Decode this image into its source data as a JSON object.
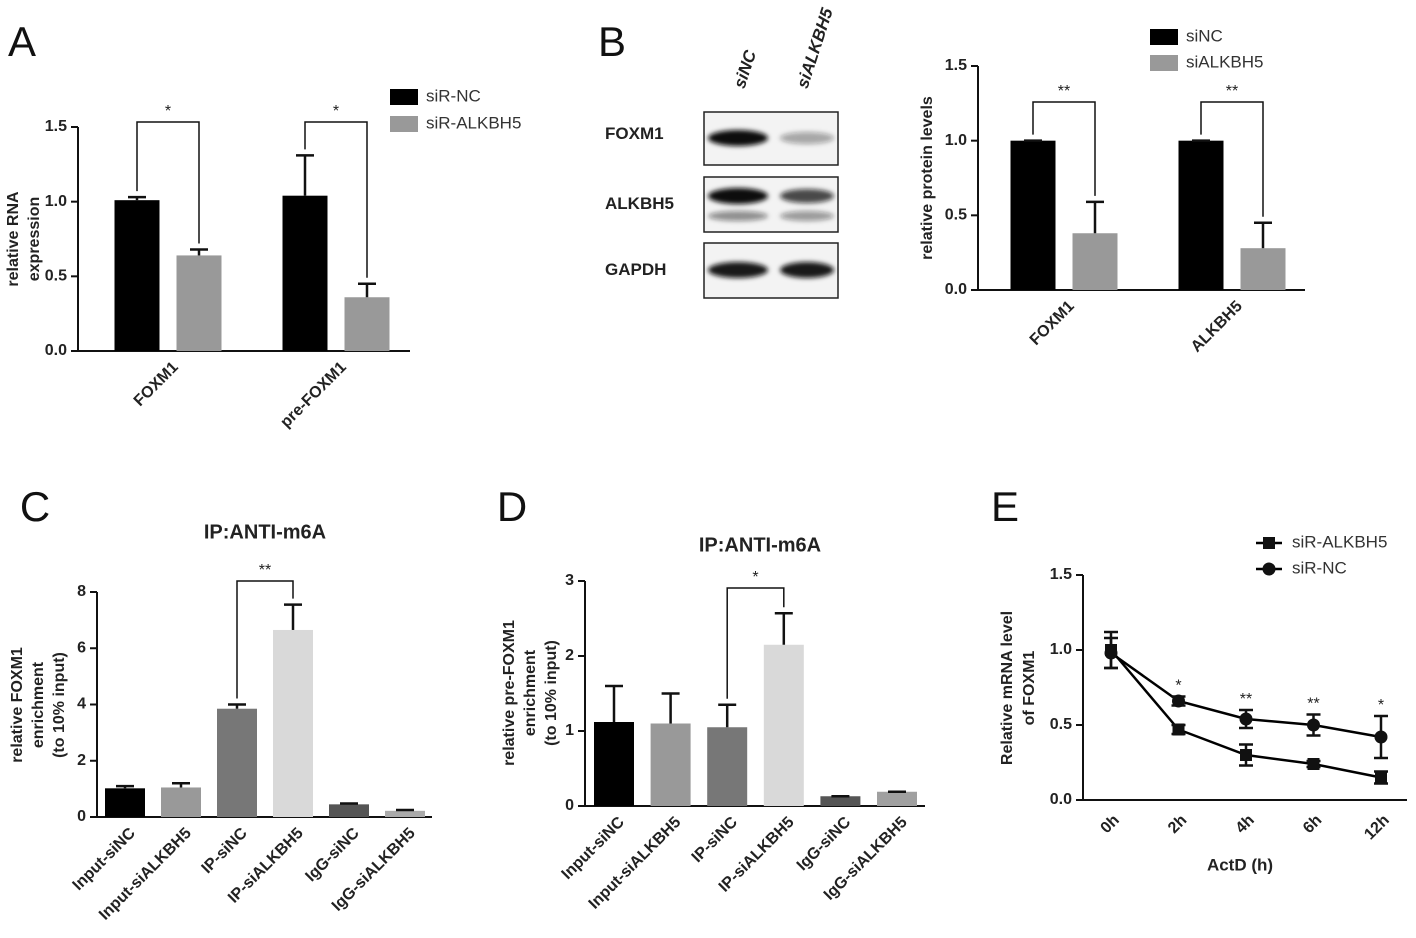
{
  "chart_data": [
    {
      "type": "bar",
      "panel": "A",
      "ylabel": [
        "relative RNA",
        "expression"
      ],
      "categories": [
        "FOXM1",
        "pre-FOXM1"
      ],
      "series": [
        {
          "name": "siR-NC",
          "color": "#000000",
          "values": [
            1.01,
            1.04
          ],
          "errors": [
            0.02,
            0.27
          ]
        },
        {
          "name": "siR-ALKBH5",
          "color": "#999999",
          "values": [
            0.64,
            0.36
          ],
          "errors": [
            0.04,
            0.09
          ]
        }
      ],
      "ylim": [
        0,
        1.5
      ],
      "yticks": [
        {
          "value": 0,
          "label": "0.0"
        },
        {
          "value": 0.5,
          "label": "0.5"
        },
        {
          "value": 1,
          "label": "1.0"
        },
        {
          "value": 1.5,
          "label": "1.5"
        }
      ],
      "brackets": [
        {
          "category": "FOXM1",
          "text": "*"
        },
        {
          "category": "pre-FOXM1",
          "text": "*"
        }
      ]
    },
    {
      "type": "blot",
      "panel": "B",
      "lanes": [
        "siNC",
        "siALKBH5"
      ],
      "proteins": [
        "FOXM1",
        "ALKBH5",
        "GAPDH"
      ]
    },
    {
      "type": "bar",
      "ylabel": [
        "relative  protein levels"
      ],
      "categories": [
        "FOXM1",
        "ALKBH5"
      ],
      "series": [
        {
          "name": "siNC",
          "color": "#000000",
          "values": [
            1.0,
            1.0
          ],
          "errors": [
            0,
            0
          ]
        },
        {
          "name": "siALKBH5",
          "color": "#999999",
          "values": [
            0.38,
            0.28
          ],
          "errors": [
            0.21,
            0.17
          ]
        }
      ],
      "ylim": [
        0,
        1.5
      ],
      "yticks": [
        {
          "value": 0,
          "label": "0.0"
        },
        {
          "value": 0.5,
          "label": "0.5"
        },
        {
          "value": 1,
          "label": "1.0"
        },
        {
          "value": 1.5,
          "label": "1.5"
        }
      ],
      "brackets": [
        {
          "category": "FOXM1",
          "text": "**"
        },
        {
          "category": "ALKBH5",
          "text": "**"
        }
      ]
    },
    {
      "type": "bar",
      "panel": "C",
      "title": "IP:ANTI-m6A",
      "ylabel": [
        "relative FOXM1",
        "enrichment",
        "(to 10% input)"
      ],
      "categories": [
        "Input-siNC",
        "Input-siALKBH5",
        "IP-siNC",
        "IP-siALKBH5",
        "IgG-siNC",
        "IgG-siALKBH5"
      ],
      "values": [
        1.02,
        1.05,
        3.85,
        6.65,
        0.45,
        0.22
      ],
      "errors": [
        0.08,
        0.15,
        0.15,
        0.9,
        0.03,
        0.03
      ],
      "colors": [
        "#000000",
        "#999999",
        "#777777",
        "#d9d9d9",
        "#555555",
        "#aaaaaa"
      ],
      "ylim": [
        0,
        8
      ],
      "yticks": [
        0,
        2,
        4,
        6,
        8
      ],
      "brackets": [
        {
          "from": "IP-siNC",
          "to": "IP-siALKBH5",
          "text": "**"
        }
      ]
    },
    {
      "type": "bar",
      "panel": "D",
      "title": "IP:ANTI-m6A",
      "ylabel": [
        "relative pre-FOXM1",
        "enrichment",
        "(to 10% input)"
      ],
      "categories": [
        "Input-siNC",
        "Input-siALKBH5",
        "IP-siNC",
        "IP-siALKBH5",
        "IgG-siNC",
        "IgG-siALKBH5"
      ],
      "values": [
        1.12,
        1.1,
        1.05,
        2.15,
        0.13,
        0.19
      ],
      "errors": [
        0.48,
        0.4,
        0.3,
        0.42,
        0,
        0
      ],
      "colors": [
        "#000000",
        "#999999",
        "#777777",
        "#d9d9d9",
        "#555555",
        "#a0a0a0"
      ],
      "ylim": [
        0,
        3
      ],
      "yticks": [
        0,
        1,
        2,
        3
      ],
      "brackets": [
        {
          "from": "IP-siNC",
          "to": "IP-siALKBH5",
          "text": "*"
        }
      ]
    },
    {
      "type": "line",
      "panel": "E",
      "ylabel": [
        "Relative mRNA level",
        "of FOXM1"
      ],
      "xlabel": "ActD (h)",
      "categories": [
        "0h",
        "2h",
        "4h",
        "6h",
        "12h"
      ],
      "series": [
        {
          "name": "siR-ALKBH5",
          "color": "#000000",
          "marker": "square",
          "values": [
            1.0,
            0.47,
            0.3,
            0.24,
            0.15
          ],
          "errors": [
            0.12,
            0.03,
            0.07,
            0.02,
            0.04
          ]
        },
        {
          "name": "siR-NC",
          "color": "#000000",
          "marker": "circle",
          "values": [
            0.98,
            0.66,
            0.54,
            0.5,
            0.42
          ],
          "errors": [
            0.1,
            0.03,
            0.06,
            0.07,
            0.14
          ]
        }
      ],
      "ylim": [
        0,
        1.5
      ],
      "yticks": [
        {
          "value": 0,
          "label": "0.0"
        },
        {
          "value": 0.5,
          "label": "0.5"
        },
        {
          "value": 1,
          "label": "1.0"
        },
        {
          "value": 1.5,
          "label": "1.5"
        }
      ],
      "annotations": [
        {
          "category": "2h",
          "text": "*"
        },
        {
          "category": "4h",
          "text": "**"
        },
        {
          "category": "6h",
          "text": "**"
        },
        {
          "category": "12h",
          "text": "*"
        }
      ]
    }
  ]
}
